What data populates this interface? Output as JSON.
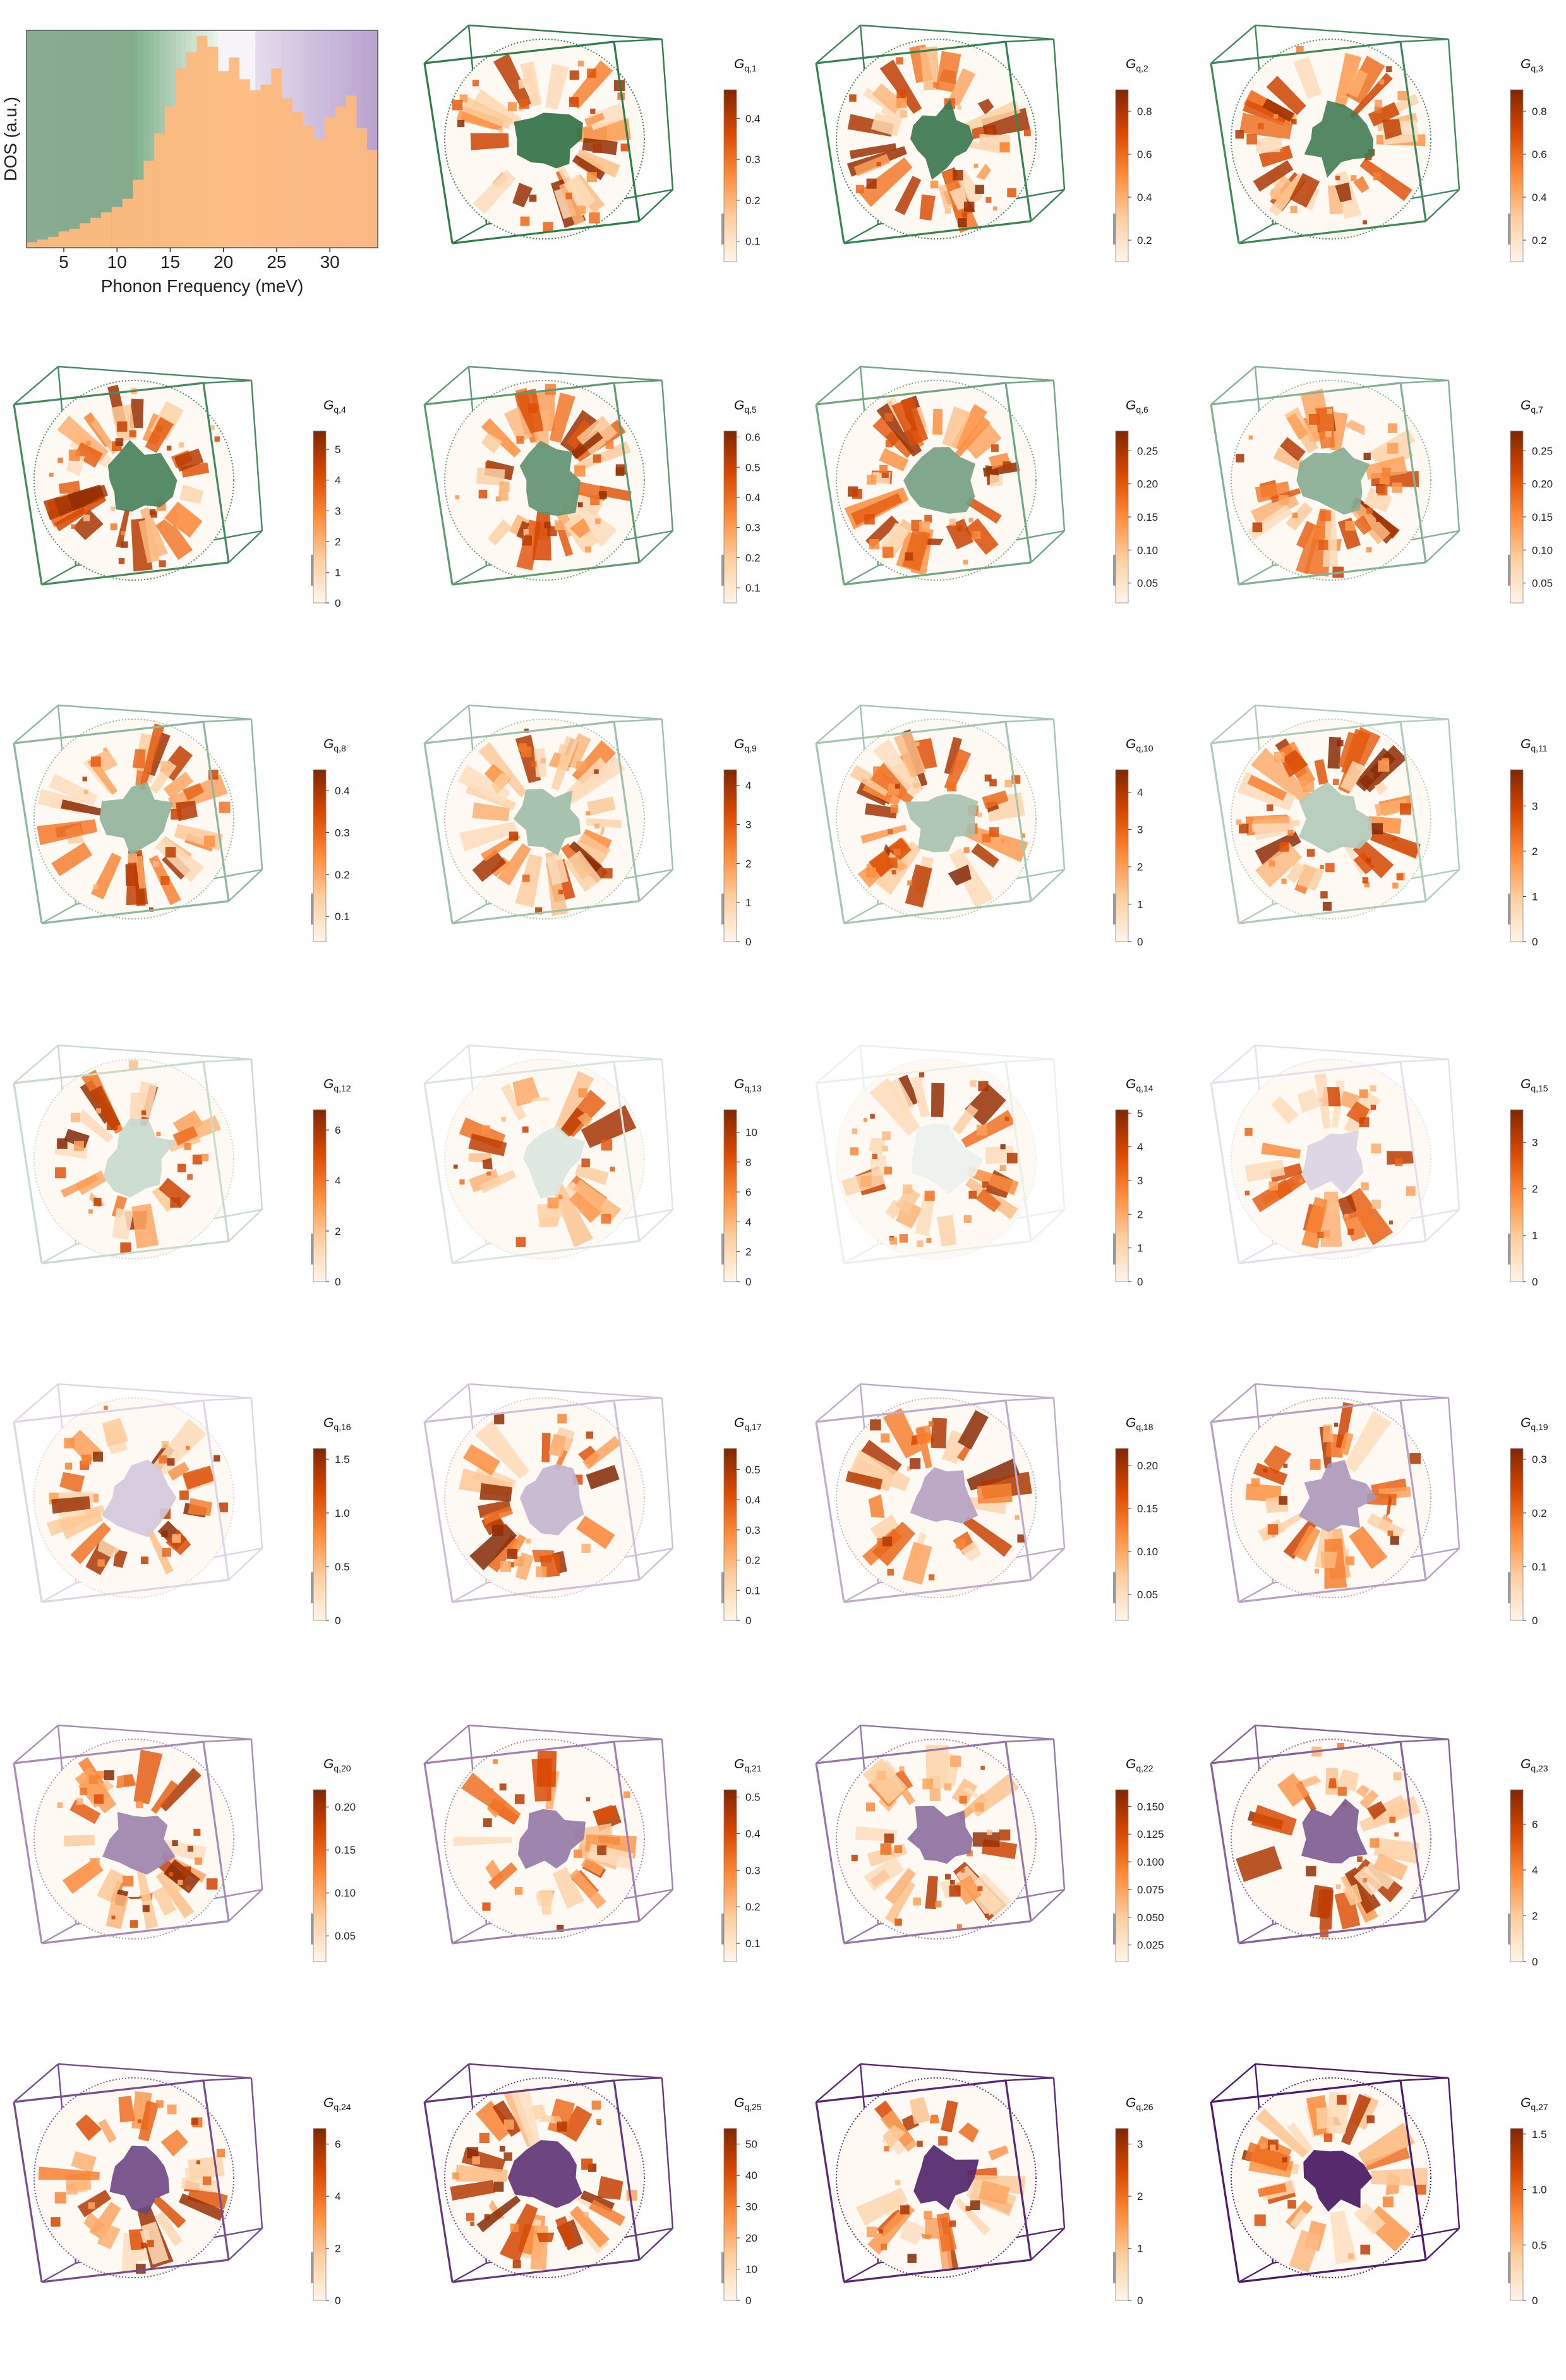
{
  "colors": {
    "dos_fill": "#fdb97d",
    "orange_scale": [
      "#fff5eb",
      "#fdd0a2",
      "#fd8d3c",
      "#d94801",
      "#7f2704"
    ],
    "gray_bar": "#9a9a9a",
    "green_dark": "#2e7d4a",
    "green_light": "#cfe8d4",
    "purple_light": "#d8cde3",
    "purple_dark": "#4e1a6b"
  },
  "chart_data": [
    {
      "type": "bar",
      "title": "",
      "xlabel": "Phonon Frequency (meV)",
      "ylabel": "DOS (a.u.)",
      "xlim": [
        1.5,
        34.5
      ],
      "xticks": [
        "5",
        "10",
        "15",
        "20",
        "25",
        "30"
      ],
      "xtick_values": [
        5,
        10,
        15,
        20,
        25,
        30
      ],
      "x": [
        2,
        3,
        4,
        5,
        6,
        7,
        8,
        9,
        10,
        11,
        12,
        13,
        14,
        15,
        16,
        17,
        18,
        19,
        20,
        21,
        22,
        23,
        24,
        25,
        26,
        27,
        28,
        29,
        30,
        31,
        32,
        33,
        34
      ],
      "values": [
        0.02,
        0.03,
        0.04,
        0.06,
        0.07,
        0.09,
        0.11,
        0.13,
        0.15,
        0.18,
        0.25,
        0.32,
        0.42,
        0.52,
        0.66,
        0.72,
        0.78,
        0.74,
        0.65,
        0.7,
        0.62,
        0.58,
        0.6,
        0.66,
        0.55,
        0.5,
        0.45,
        0.4,
        0.48,
        0.52,
        0.56,
        0.44,
        0.36
      ],
      "band_colors_note": "background bands shade from dark green at low frequency to white to purple at high frequency"
    },
    {
      "type": "heatmap",
      "panels": [
        {
          "label_main": "G",
          "label_sub": "q,1",
          "ticks": [
            "0.1",
            "0.2",
            "0.3",
            "0.4"
          ],
          "tick_values": [
            0.1,
            0.2,
            0.3,
            0.4
          ],
          "vmin": 0.05,
          "vmax": 0.47,
          "mode": "green",
          "shade": 0.0
        },
        {
          "label_main": "G",
          "label_sub": "q,2",
          "ticks": [
            "0.2",
            "0.4",
            "0.6",
            "0.8"
          ],
          "tick_values": [
            0.2,
            0.4,
            0.6,
            0.8
          ],
          "vmin": 0.1,
          "vmax": 0.9,
          "mode": "green",
          "shade": 0.05
        },
        {
          "label_main": "G",
          "label_sub": "q,3",
          "ticks": [
            "0.2",
            "0.4",
            "0.6",
            "0.8"
          ],
          "tick_values": [
            0.2,
            0.4,
            0.6,
            0.8
          ],
          "vmin": 0.1,
          "vmax": 0.9,
          "mode": "green",
          "shade": 0.1
        },
        {
          "label_main": "G",
          "label_sub": "q,4",
          "ticks": [
            "0",
            "1",
            "2",
            "3",
            "4",
            "5"
          ],
          "tick_values": [
            0,
            1,
            2,
            3,
            4,
            5
          ],
          "vmin": 0,
          "vmax": 5.6,
          "mode": "green",
          "shade": 0.12
        },
        {
          "label_main": "G",
          "label_sub": "q,5",
          "ticks": [
            "0.1",
            "0.2",
            "0.3",
            "0.4",
            "0.5",
            "0.6"
          ],
          "tick_values": [
            0.1,
            0.2,
            0.3,
            0.4,
            0.5,
            0.6
          ],
          "vmin": 0.05,
          "vmax": 0.62,
          "mode": "green",
          "shade": 0.25
        },
        {
          "label_main": "G",
          "label_sub": "q,6",
          "ticks": [
            "0.05",
            "0.10",
            "0.15",
            "0.20",
            "0.25"
          ],
          "tick_values": [
            0.05,
            0.1,
            0.15,
            0.2,
            0.25
          ],
          "vmin": 0.02,
          "vmax": 0.28,
          "mode": "green",
          "shade": 0.35
        },
        {
          "label_main": "G",
          "label_sub": "q,7",
          "ticks": [
            "0.05",
            "0.10",
            "0.15",
            "0.20",
            "0.25"
          ],
          "tick_values": [
            0.05,
            0.1,
            0.15,
            0.2,
            0.25
          ],
          "vmin": 0.02,
          "vmax": 0.28,
          "mode": "green",
          "shade": 0.45
        },
        {
          "label_main": "G",
          "label_sub": "q,8",
          "ticks": [
            "0.1",
            "0.2",
            "0.3",
            "0.4"
          ],
          "tick_values": [
            0.1,
            0.2,
            0.3,
            0.4
          ],
          "vmin": 0.04,
          "vmax": 0.45,
          "mode": "green",
          "shade": 0.5
        },
        {
          "label_main": "G",
          "label_sub": "q,9",
          "ticks": [
            "0",
            "1",
            "2",
            "3",
            "4"
          ],
          "tick_values": [
            0,
            1,
            2,
            3,
            4
          ],
          "vmin": 0,
          "vmax": 4.4,
          "mode": "green",
          "shade": 0.58
        },
        {
          "label_main": "G",
          "label_sub": "q,10",
          "ticks": [
            "0",
            "1",
            "2",
            "3",
            "4"
          ],
          "tick_values": [
            0,
            1,
            2,
            3,
            4
          ],
          "vmin": 0,
          "vmax": 4.6,
          "mode": "green",
          "shade": 0.62
        },
        {
          "label_main": "G",
          "label_sub": "q,11",
          "ticks": [
            "0",
            "1",
            "2",
            "3"
          ],
          "tick_values": [
            0,
            1,
            2,
            3
          ],
          "vmin": 0,
          "vmax": 3.8,
          "mode": "green",
          "shade": 0.68
        },
        {
          "label_main": "G",
          "label_sub": "q,12",
          "ticks": [
            "0",
            "2",
            "4",
            "6"
          ],
          "tick_values": [
            0,
            2,
            4,
            6
          ],
          "vmin": 0,
          "vmax": 6.8,
          "mode": "green",
          "shade": 0.8
        },
        {
          "label_main": "G",
          "label_sub": "q,13",
          "ticks": [
            "0",
            "2",
            "4",
            "6",
            "8",
            "10"
          ],
          "tick_values": [
            0,
            2,
            4,
            6,
            8,
            10
          ],
          "vmin": 0,
          "vmax": 11.5,
          "mode": "green",
          "shade": 0.9
        },
        {
          "label_main": "G",
          "label_sub": "q,14",
          "ticks": [
            "0",
            "1",
            "2",
            "3",
            "4",
            "5"
          ],
          "tick_values": [
            0,
            1,
            2,
            3,
            4,
            5
          ],
          "vmin": 0,
          "vmax": 5.1,
          "mode": "green",
          "shade": 0.98
        },
        {
          "label_main": "G",
          "label_sub": "q,15",
          "ticks": [
            "0",
            "1",
            "2",
            "3"
          ],
          "tick_values": [
            0,
            1,
            2,
            3
          ],
          "vmin": 0,
          "vmax": 3.7,
          "mode": "purple",
          "shade": 0.05
        },
        {
          "label_main": "G",
          "label_sub": "q,16",
          "ticks": [
            "0",
            "0.5",
            "1.0",
            "1.5"
          ],
          "tick_values": [
            0,
            0.5,
            1.0,
            1.5
          ],
          "vmin": 0,
          "vmax": 1.6,
          "mode": "purple",
          "shade": 0.1
        },
        {
          "label_main": "G",
          "label_sub": "q,17",
          "ticks": [
            "0",
            "0.1",
            "0.2",
            "0.3",
            "0.4",
            "0.5"
          ],
          "tick_values": [
            0,
            0.1,
            0.2,
            0.3,
            0.4,
            0.5
          ],
          "vmin": 0,
          "vmax": 0.57,
          "mode": "purple",
          "shade": 0.2
        },
        {
          "label_main": "G",
          "label_sub": "q,18",
          "ticks": [
            "0.05",
            "0.10",
            "0.15",
            "0.20"
          ],
          "tick_values": [
            0.05,
            0.1,
            0.15,
            0.2
          ],
          "vmin": 0.02,
          "vmax": 0.22,
          "mode": "purple",
          "shade": 0.3
        },
        {
          "label_main": "G",
          "label_sub": "q,19",
          "ticks": [
            "0",
            "0.1",
            "0.2",
            "0.3"
          ],
          "tick_values": [
            0,
            0.1,
            0.2,
            0.3
          ],
          "vmin": 0,
          "vmax": 0.32,
          "mode": "purple",
          "shade": 0.35
        },
        {
          "label_main": "G",
          "label_sub": "q,20",
          "ticks": [
            "0.05",
            "0.10",
            "0.15",
            "0.20"
          ],
          "tick_values": [
            0.05,
            0.1,
            0.15,
            0.2
          ],
          "vmin": 0.02,
          "vmax": 0.22,
          "mode": "purple",
          "shade": 0.45
        },
        {
          "label_main": "G",
          "label_sub": "q,21",
          "ticks": [
            "0.1",
            "0.2",
            "0.3",
            "0.4",
            "0.5"
          ],
          "tick_values": [
            0.1,
            0.2,
            0.3,
            0.4,
            0.5
          ],
          "vmin": 0.05,
          "vmax": 0.52,
          "mode": "purple",
          "shade": 0.5
        },
        {
          "label_main": "G",
          "label_sub": "q,22",
          "ticks": [
            "0.025",
            "0.050",
            "0.075",
            "0.100",
            "0.125",
            "0.150"
          ],
          "tick_values": [
            0.025,
            0.05,
            0.075,
            0.1,
            0.125,
            0.15
          ],
          "vmin": 0.01,
          "vmax": 0.165,
          "mode": "purple",
          "shade": 0.55
        },
        {
          "label_main": "G",
          "label_sub": "q,23",
          "ticks": [
            "0",
            "2",
            "4",
            "6"
          ],
          "tick_values": [
            0,
            2,
            4,
            6
          ],
          "vmin": 0,
          "vmax": 7.5,
          "mode": "purple",
          "shade": 0.65
        },
        {
          "label_main": "G",
          "label_sub": "q,24",
          "ticks": [
            "0",
            "2",
            "4",
            "6"
          ],
          "tick_values": [
            0,
            2,
            4,
            6
          ],
          "vmin": 0,
          "vmax": 6.6,
          "mode": "purple",
          "shade": 0.75
        },
        {
          "label_main": "G",
          "label_sub": "q,25",
          "ticks": [
            "0",
            "10",
            "20",
            "30",
            "40",
            "50"
          ],
          "tick_values": [
            0,
            10,
            20,
            30,
            40,
            50
          ],
          "vmin": 0,
          "vmax": 55,
          "mode": "purple",
          "shade": 0.85
        },
        {
          "label_main": "G",
          "label_sub": "q,26",
          "ticks": [
            "0",
            "1",
            "2",
            "3"
          ],
          "tick_values": [
            0,
            1,
            2,
            3
          ],
          "vmin": 0,
          "vmax": 3.3,
          "mode": "purple",
          "shade": 0.93
        },
        {
          "label_main": "G",
          "label_sub": "q,27",
          "ticks": [
            "0",
            "0.5",
            "1.0",
            "1.5"
          ],
          "tick_values": [
            0,
            0.5,
            1.0,
            1.5
          ],
          "vmin": 0,
          "vmax": 1.55,
          "mode": "purple",
          "shade": 1.0
        }
      ]
    }
  ]
}
